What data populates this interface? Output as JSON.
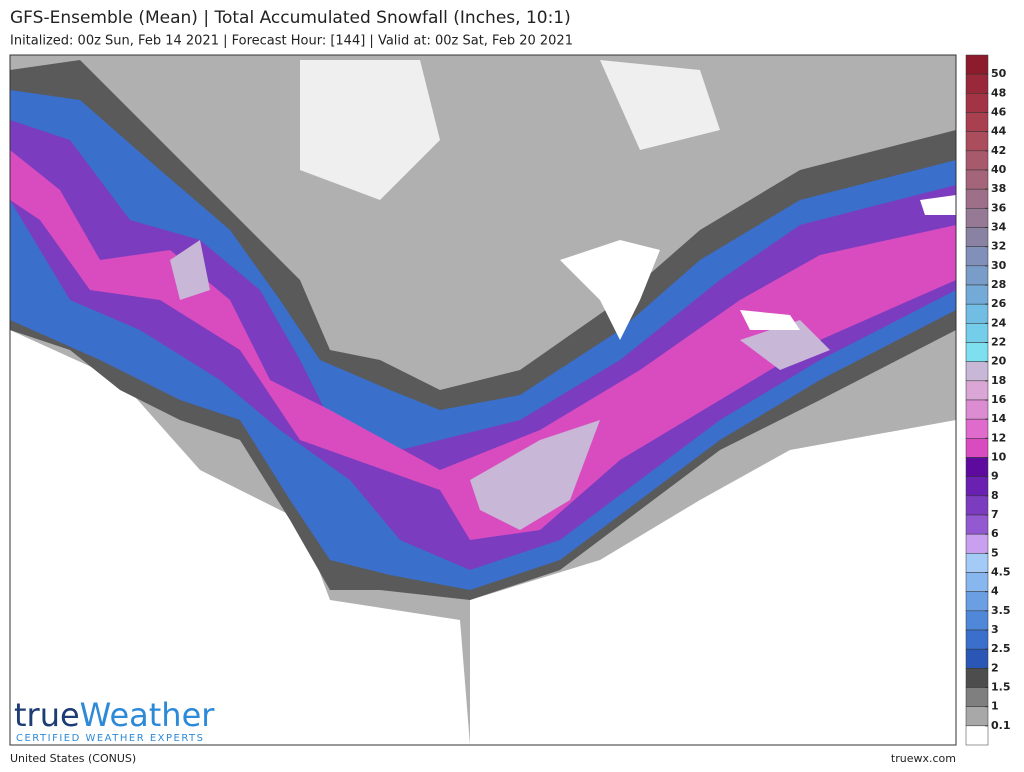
{
  "header": {
    "title": "GFS-Ensemble (Mean) | Total Accumulated Snowfall (Inches, 10:1)",
    "subtitle": "Initalized: 00z Sun, Feb 14 2021  |  Forecast Hour: [144]  |  Valid at: 00z Sat, Feb 20 2021"
  },
  "colorbar": {
    "levels": [
      50,
      48,
      46,
      44,
      42,
      40,
      38,
      36,
      34,
      32,
      30,
      28,
      26,
      24,
      22,
      20,
      18,
      16,
      14,
      12,
      10,
      9,
      8,
      7,
      6,
      5,
      4.5,
      4,
      3.5,
      3,
      2.5,
      2,
      1.5,
      1,
      0.1
    ],
    "colors": [
      "#8c1c2c",
      "#99283a",
      "#a33445",
      "#a8404f",
      "#ab4d5c",
      "#a85a6c",
      "#a4657a",
      "#9e6f88",
      "#967a95",
      "#8a82a2",
      "#8090b8",
      "#7a9cc8",
      "#74aad8",
      "#72bde3",
      "#74cde9",
      "#7ee0ee",
      "#c8b7d6",
      "#d9a6d6",
      "#dc8dd2",
      "#df6ccc",
      "#d94cbf",
      "#5e0a9f",
      "#6a20b0",
      "#7c3cc0",
      "#9359d0",
      "#c9a0f0",
      "#a3cbf5",
      "#87b7ee",
      "#6a9fe3",
      "#4f88d8",
      "#3a6fcb",
      "#2a57b5",
      "#4d4d4d",
      "#7f7f7f",
      "#a8a8a8",
      "#ffffff"
    ]
  },
  "logo": {
    "prefix": "true",
    "suffix": "Weather",
    "tagline": "CERTIFIED WEATHER EXPERTS"
  },
  "footer": {
    "region": "United States (CONUS)",
    "site": "truewx.com"
  }
}
